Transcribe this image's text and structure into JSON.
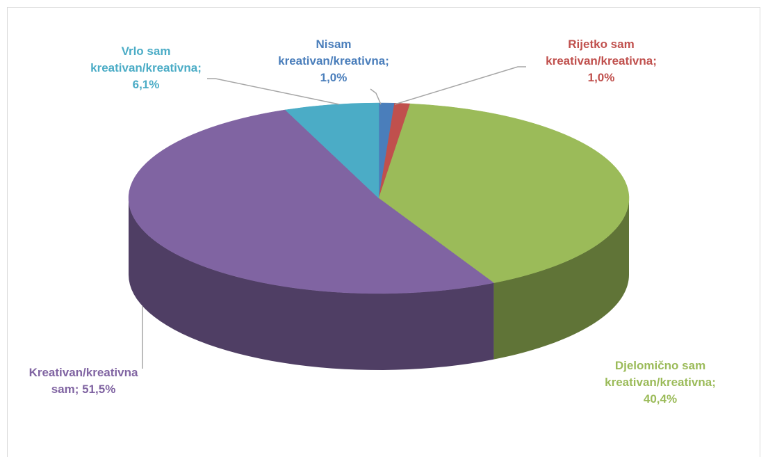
{
  "chart_data": {
    "type": "pie3d",
    "categories": [
      "Nisam kreativan/kreativna",
      "Rijetko sam kreativan/kreativna",
      "Djelomično sam kreativan/kreativna",
      "Kreativan/kreativna sam",
      "Vrlo sam kreativan/kreativna"
    ],
    "values": [
      1.0,
      1.0,
      40.4,
      51.5,
      6.1
    ],
    "value_labels": [
      "1,0%",
      "1,0%",
      "40,4%",
      "51,5%",
      "6,1%"
    ],
    "label_separator": "; ",
    "colors": [
      "#4a7ebb",
      "#c0504d",
      "#9bbb59",
      "#8064a2",
      "#4bacc6"
    ]
  }
}
